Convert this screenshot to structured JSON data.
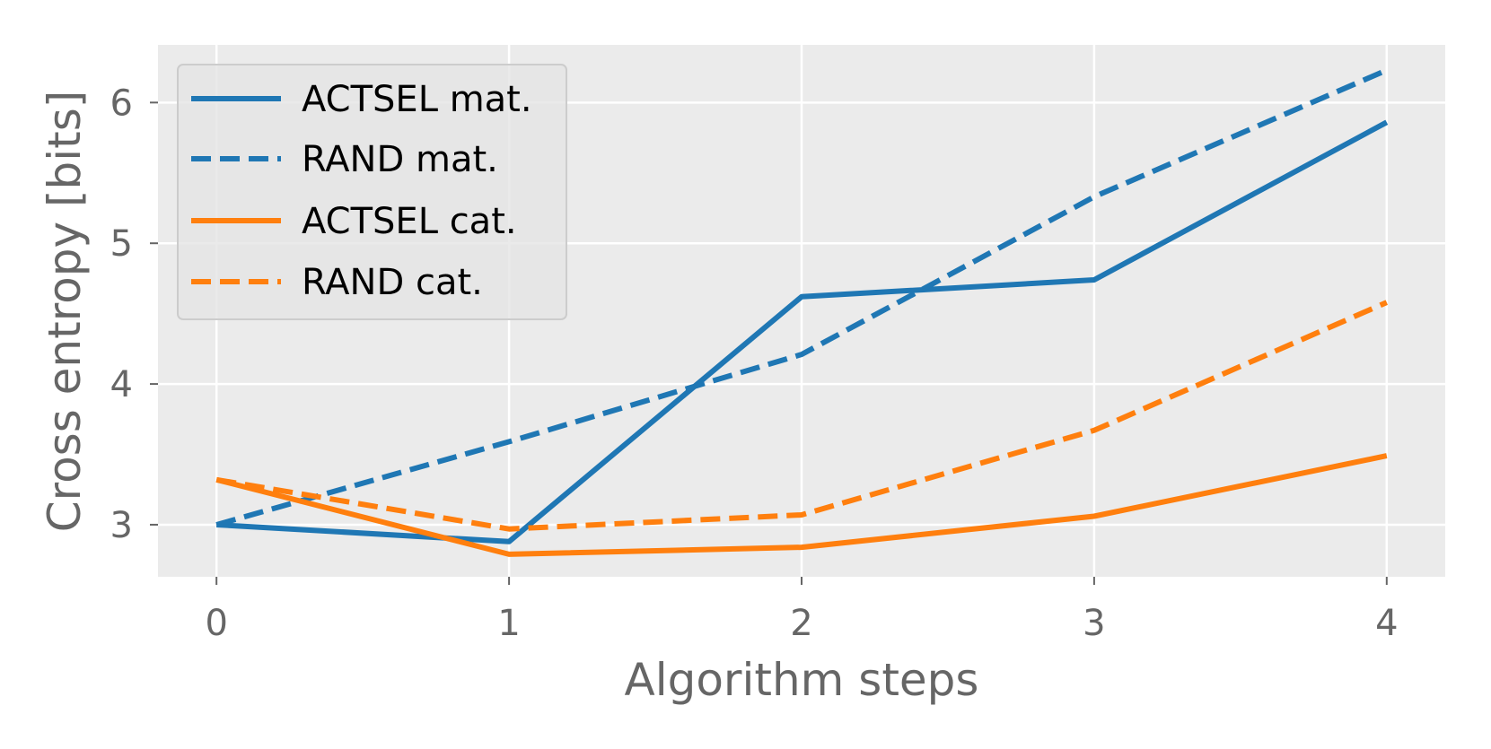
{
  "chart_data": {
    "type": "line",
    "xlabel": "Algorithm steps",
    "ylabel": "Cross entropy [bits]",
    "x": [
      0,
      1,
      2,
      3,
      4
    ],
    "xlim": [
      -0.2,
      4.2
    ],
    "ylim": [
      2.63,
      6.41
    ],
    "xticks": [
      "0",
      "1",
      "2",
      "3",
      "4"
    ],
    "yticks": [
      "3",
      "4",
      "5",
      "6"
    ],
    "grid": true,
    "legend_position": "top-left",
    "series": [
      {
        "name": "ACTSEL mat.",
        "color": "#1f77b4",
        "dash": "solid",
        "values": [
          3.0,
          2.88,
          4.62,
          4.74,
          5.86
        ]
      },
      {
        "name": "RAND mat.",
        "color": "#1f77b4",
        "dash": "dashed",
        "values": [
          3.0,
          3.59,
          4.21,
          5.33,
          6.23
        ]
      },
      {
        "name": "ACTSEL cat.",
        "color": "#ff7f0e",
        "dash": "solid",
        "values": [
          3.32,
          2.79,
          2.84,
          3.06,
          3.49
        ]
      },
      {
        "name": "RAND cat.",
        "color": "#ff7f0e",
        "dash": "dashed",
        "values": [
          3.32,
          2.97,
          3.07,
          3.67,
          4.58
        ]
      }
    ]
  }
}
